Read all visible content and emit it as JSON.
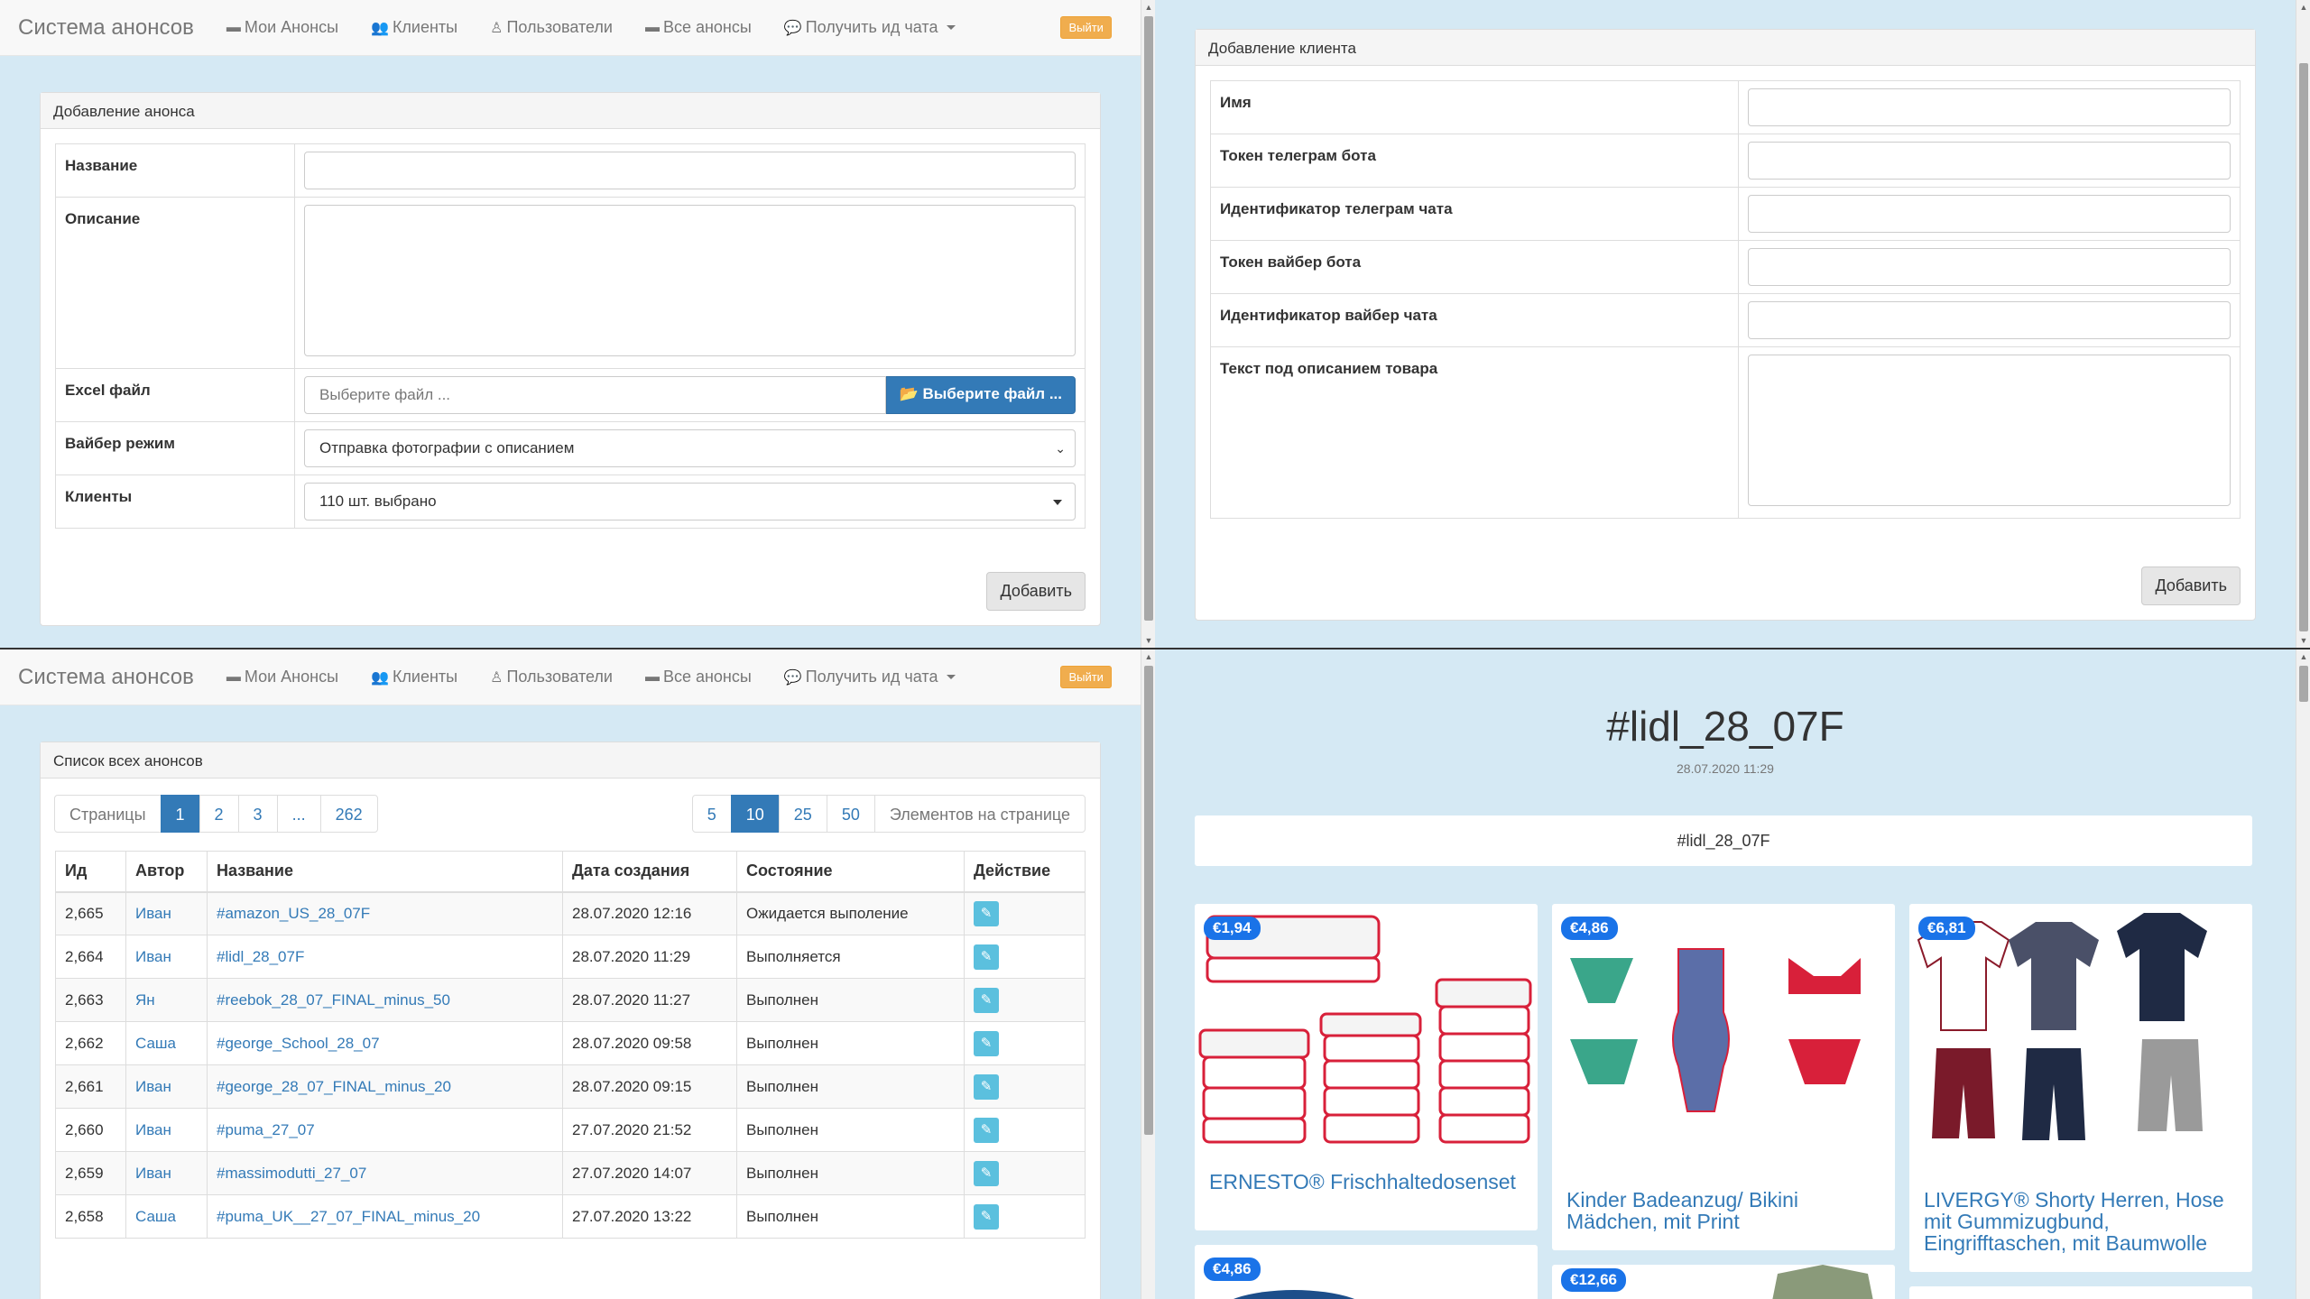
{
  "nav": {
    "brand": "Система анонсов",
    "links": [
      "Мои Анонсы",
      "Клиенты",
      "Пользователи",
      "Все анонсы",
      "Получить ид чата"
    ],
    "logout": "Выйти"
  },
  "announce_form": {
    "title": "Добавление анонса",
    "name_label": "Название",
    "desc_label": "Описание",
    "excel_label": "Excel файл",
    "file_placeholder": "Выберите файл ...",
    "file_button": "Выберите файл ...",
    "viber_label": "Вайбер режим",
    "viber_value": "Отправка фотографии с описанием",
    "clients_label": "Клиенты",
    "clients_value": "110 шт. выбрано",
    "submit": "Добавить"
  },
  "client_form": {
    "title": "Добавление клиента",
    "fields": [
      "Имя",
      "Токен телеграм бота",
      "Идентификатор телеграм чата",
      "Токен вайбер бота",
      "Идентификатор вайбер чата",
      "Текст под описанием товара"
    ],
    "submit": "Добавить"
  },
  "list": {
    "title": "Список всех анонсов",
    "pages_label": "Страницы",
    "pages": [
      "1",
      "2",
      "3",
      "...",
      "262"
    ],
    "sizes": [
      "5",
      "10",
      "25",
      "50"
    ],
    "per_page_label": "Элементов на странице",
    "columns": [
      "Ид",
      "Автор",
      "Название",
      "Дата создания",
      "Состояние",
      "Действие"
    ],
    "rows": [
      {
        "id": "2,665",
        "author": "Иван",
        "name": "#amazon_US_28_07F",
        "date": "28.07.2020 12:16",
        "state": "Ожидается выполение"
      },
      {
        "id": "2,664",
        "author": "Иван",
        "name": "#lidl_28_07F",
        "date": "28.07.2020 11:29",
        "state": "Выполняется"
      },
      {
        "id": "2,663",
        "author": "Ян",
        "name": "#reebok_28_07_FINAL_minus_50",
        "date": "28.07.2020 11:27",
        "state": "Выполнен"
      },
      {
        "id": "2,662",
        "author": "Саша",
        "name": "#george_School_28_07",
        "date": "28.07.2020 09:58",
        "state": "Выполнен"
      },
      {
        "id": "2,661",
        "author": "Иван",
        "name": "#george_28_07_FINAL_minus_20",
        "date": "28.07.2020 09:15",
        "state": "Выполнен"
      },
      {
        "id": "2,660",
        "author": "Иван",
        "name": "#puma_27_07",
        "date": "27.07.2020 21:52",
        "state": "Выполнен"
      },
      {
        "id": "2,659",
        "author": "Иван",
        "name": "#massimodutti_27_07",
        "date": "27.07.2020 14:07",
        "state": "Выполнен"
      },
      {
        "id": "2,658",
        "author": "Саша",
        "name": "#puma_UK__27_07_FINAL_minus_20",
        "date": "27.07.2020 13:22",
        "state": "Выполнен"
      }
    ]
  },
  "detail": {
    "heading": "#lidl_28_07F",
    "date": "28.07.2020 11:29",
    "tag": "#lidl_28_07F",
    "cards": [
      {
        "price": "€1,94",
        "title": "ERNESTO® Frischhaltedosenset"
      },
      {
        "price": "€4,86",
        "title": "Kinder Badeanzug/ Bikini Mädchen, mit Print"
      },
      {
        "price": "€6,81",
        "title": "LIVERGY® Shorty Herren, Hose mit Gummizugbund, Eingrifftaschen, mit Baumwolle"
      },
      {
        "price": "€4,86",
        "title": ""
      },
      {
        "price": "€12,66",
        "title": ""
      }
    ]
  }
}
